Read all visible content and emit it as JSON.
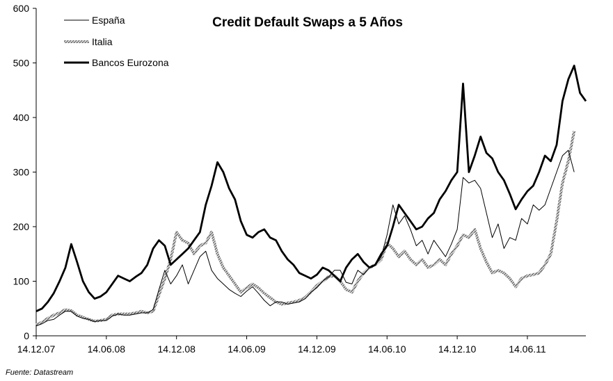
{
  "chart_data": {
    "type": "line",
    "title": "Credit Default Swaps a 5 Años",
    "source": "Fuente: Datastream",
    "ylim": [
      0,
      600
    ],
    "yticks": [
      0,
      100,
      200,
      300,
      400,
      500,
      600
    ],
    "xlim": [
      0,
      46
    ],
    "xticks": [
      {
        "x": 0,
        "label": "14.12.07"
      },
      {
        "x": 6,
        "label": "14.06.08"
      },
      {
        "x": 12,
        "label": "14.12.08"
      },
      {
        "x": 18,
        "label": "14.06.09"
      },
      {
        "x": 24,
        "label": "14.12.09"
      },
      {
        "x": 30,
        "label": "14.06.10"
      },
      {
        "x": 36,
        "label": "14.12.10"
      },
      {
        "x": 42,
        "label": "14.06.11"
      }
    ],
    "legend": {
      "position": "top-left"
    },
    "grid": false,
    "series": [
      {
        "name": "España",
        "color": "#000000",
        "style": "thin",
        "points": [
          [
            0,
            18
          ],
          [
            0.5,
            22
          ],
          [
            1,
            28
          ],
          [
            1.5,
            30
          ],
          [
            2,
            38
          ],
          [
            2.5,
            45
          ],
          [
            3,
            45
          ],
          [
            3.5,
            36
          ],
          [
            4,
            32
          ],
          [
            4.5,
            30
          ],
          [
            5,
            26
          ],
          [
            5.5,
            28
          ],
          [
            6,
            28
          ],
          [
            6.5,
            36
          ],
          [
            7,
            40
          ],
          [
            7.5,
            38
          ],
          [
            8,
            38
          ],
          [
            8.5,
            40
          ],
          [
            9,
            42
          ],
          [
            9.5,
            42
          ],
          [
            10,
            48
          ],
          [
            10.5,
            85
          ],
          [
            11,
            120
          ],
          [
            11.5,
            95
          ],
          [
            12,
            110
          ],
          [
            12.5,
            130
          ],
          [
            13,
            95
          ],
          [
            13.5,
            120
          ],
          [
            14,
            145
          ],
          [
            14.5,
            155
          ],
          [
            15,
            120
          ],
          [
            15.5,
            105
          ],
          [
            16,
            95
          ],
          [
            16.5,
            85
          ],
          [
            17,
            78
          ],
          [
            17.5,
            72
          ],
          [
            18,
            82
          ],
          [
            18.5,
            90
          ],
          [
            19,
            78
          ],
          [
            19.5,
            65
          ],
          [
            20,
            55
          ],
          [
            20.5,
            62
          ],
          [
            21,
            62
          ],
          [
            21.5,
            58
          ],
          [
            22,
            60
          ],
          [
            22.5,
            62
          ],
          [
            23,
            68
          ],
          [
            23.5,
            80
          ],
          [
            24,
            88
          ],
          [
            24.5,
            100
          ],
          [
            25,
            108
          ],
          [
            25.5,
            120
          ],
          [
            26,
            120
          ],
          [
            26.5,
            98
          ],
          [
            27,
            95
          ],
          [
            27.5,
            120
          ],
          [
            28,
            112
          ],
          [
            28.5,
            125
          ],
          [
            29,
            130
          ],
          [
            29.5,
            145
          ],
          [
            30,
            185
          ],
          [
            30.5,
            240
          ],
          [
            31,
            205
          ],
          [
            31.5,
            220
          ],
          [
            32,
            195
          ],
          [
            32.5,
            165
          ],
          [
            33,
            175
          ],
          [
            33.5,
            150
          ],
          [
            34,
            175
          ],
          [
            34.5,
            160
          ],
          [
            35,
            145
          ],
          [
            35.5,
            168
          ],
          [
            36,
            195
          ],
          [
            36.5,
            290
          ],
          [
            37,
            280
          ],
          [
            37.5,
            285
          ],
          [
            38,
            270
          ],
          [
            38.5,
            225
          ],
          [
            39,
            180
          ],
          [
            39.5,
            205
          ],
          [
            40,
            160
          ],
          [
            40.5,
            180
          ],
          [
            41,
            175
          ],
          [
            41.5,
            215
          ],
          [
            42,
            205
          ],
          [
            42.5,
            240
          ],
          [
            43,
            230
          ],
          [
            43.5,
            240
          ],
          [
            44,
            270
          ],
          [
            44.5,
            300
          ],
          [
            45,
            330
          ],
          [
            45.5,
            340
          ],
          [
            46,
            300
          ]
        ]
      },
      {
        "name": "Italia",
        "color": "#8c8c8c",
        "style": "hatched",
        "points": [
          [
            0,
            20
          ],
          [
            0.5,
            25
          ],
          [
            1,
            32
          ],
          [
            1.5,
            38
          ],
          [
            2,
            42
          ],
          [
            2.5,
            48
          ],
          [
            3,
            46
          ],
          [
            3.5,
            38
          ],
          [
            4,
            34
          ],
          [
            4.5,
            30
          ],
          [
            5,
            27
          ],
          [
            5.5,
            28
          ],
          [
            6,
            30
          ],
          [
            6.5,
            38
          ],
          [
            7,
            40
          ],
          [
            7.5,
            40
          ],
          [
            8,
            40
          ],
          [
            8.5,
            42
          ],
          [
            9,
            45
          ],
          [
            9.5,
            42
          ],
          [
            10,
            45
          ],
          [
            10.5,
            75
          ],
          [
            11,
            105
          ],
          [
            11.5,
            140
          ],
          [
            12,
            190
          ],
          [
            12.5,
            175
          ],
          [
            13,
            170
          ],
          [
            13.5,
            150
          ],
          [
            14,
            165
          ],
          [
            14.5,
            170
          ],
          [
            15,
            190
          ],
          [
            15.5,
            150
          ],
          [
            16,
            125
          ],
          [
            16.5,
            110
          ],
          [
            17,
            95
          ],
          [
            17.5,
            80
          ],
          [
            18,
            88
          ],
          [
            18.5,
            95
          ],
          [
            19,
            88
          ],
          [
            19.5,
            78
          ],
          [
            20,
            70
          ],
          [
            20.5,
            62
          ],
          [
            21,
            58
          ],
          [
            21.5,
            60
          ],
          [
            22,
            62
          ],
          [
            22.5,
            65
          ],
          [
            23,
            70
          ],
          [
            23.5,
            80
          ],
          [
            24,
            92
          ],
          [
            24.5,
            100
          ],
          [
            25,
            108
          ],
          [
            25.5,
            110
          ],
          [
            26,
            100
          ],
          [
            26.5,
            85
          ],
          [
            27,
            80
          ],
          [
            27.5,
            100
          ],
          [
            28,
            115
          ],
          [
            28.5,
            125
          ],
          [
            29,
            130
          ],
          [
            29.5,
            140
          ],
          [
            30,
            170
          ],
          [
            30.5,
            160
          ],
          [
            31,
            145
          ],
          [
            31.5,
            155
          ],
          [
            32,
            140
          ],
          [
            32.5,
            130
          ],
          [
            33,
            140
          ],
          [
            33.5,
            125
          ],
          [
            34,
            130
          ],
          [
            34.5,
            140
          ],
          [
            35,
            130
          ],
          [
            35.5,
            150
          ],
          [
            36,
            165
          ],
          [
            36.5,
            185
          ],
          [
            37,
            180
          ],
          [
            37.5,
            195
          ],
          [
            38,
            160
          ],
          [
            38.5,
            135
          ],
          [
            39,
            115
          ],
          [
            39.5,
            120
          ],
          [
            40,
            115
          ],
          [
            40.5,
            105
          ],
          [
            41,
            90
          ],
          [
            41.5,
            105
          ],
          [
            42,
            110
          ],
          [
            42.5,
            112
          ],
          [
            43,
            115
          ],
          [
            43.5,
            130
          ],
          [
            44,
            150
          ],
          [
            44.5,
            210
          ],
          [
            45,
            280
          ],
          [
            45.5,
            320
          ],
          [
            46,
            375
          ]
        ]
      },
      {
        "name": "Bancos Eurozona",
        "color": "#000000",
        "style": "thick",
        "points": [
          [
            0,
            45
          ],
          [
            0.5,
            50
          ],
          [
            1,
            62
          ],
          [
            1.5,
            78
          ],
          [
            2,
            100
          ],
          [
            2.5,
            125
          ],
          [
            3,
            168
          ],
          [
            3.5,
            135
          ],
          [
            4,
            100
          ],
          [
            4.5,
            80
          ],
          [
            5,
            68
          ],
          [
            5.5,
            72
          ],
          [
            6,
            80
          ],
          [
            6.5,
            95
          ],
          [
            7,
            110
          ],
          [
            7.5,
            105
          ],
          [
            8,
            100
          ],
          [
            8.5,
            108
          ],
          [
            9,
            115
          ],
          [
            9.5,
            130
          ],
          [
            10,
            160
          ],
          [
            10.5,
            175
          ],
          [
            11,
            165
          ],
          [
            11.5,
            130
          ],
          [
            12,
            140
          ],
          [
            12.5,
            150
          ],
          [
            13,
            160
          ],
          [
            13.5,
            175
          ],
          [
            14,
            190
          ],
          [
            14.5,
            240
          ],
          [
            15,
            275
          ],
          [
            15.5,
            318
          ],
          [
            16,
            300
          ],
          [
            16.5,
            270
          ],
          [
            17,
            250
          ],
          [
            17.5,
            210
          ],
          [
            18,
            185
          ],
          [
            18.5,
            180
          ],
          [
            19,
            190
          ],
          [
            19.5,
            195
          ],
          [
            20,
            180
          ],
          [
            20.5,
            175
          ],
          [
            21,
            155
          ],
          [
            21.5,
            140
          ],
          [
            22,
            130
          ],
          [
            22.5,
            115
          ],
          [
            23,
            110
          ],
          [
            23.5,
            105
          ],
          [
            24,
            112
          ],
          [
            24.5,
            125
          ],
          [
            25,
            120
          ],
          [
            25.5,
            110
          ],
          [
            26,
            100
          ],
          [
            26.5,
            125
          ],
          [
            27,
            140
          ],
          [
            27.5,
            150
          ],
          [
            28,
            135
          ],
          [
            28.5,
            125
          ],
          [
            29,
            130
          ],
          [
            29.5,
            150
          ],
          [
            30,
            165
          ],
          [
            30.5,
            200
          ],
          [
            31,
            240
          ],
          [
            31.5,
            225
          ],
          [
            32,
            210
          ],
          [
            32.5,
            195
          ],
          [
            33,
            200
          ],
          [
            33.5,
            215
          ],
          [
            34,
            225
          ],
          [
            34.5,
            250
          ],
          [
            35,
            265
          ],
          [
            35.5,
            285
          ],
          [
            36,
            300
          ],
          [
            36.5,
            462
          ],
          [
            37,
            300
          ],
          [
            37.5,
            330
          ],
          [
            38,
            365
          ],
          [
            38.5,
            335
          ],
          [
            39,
            325
          ],
          [
            39.5,
            300
          ],
          [
            40,
            285
          ],
          [
            40.5,
            260
          ],
          [
            41,
            232
          ],
          [
            41.5,
            250
          ],
          [
            42,
            265
          ],
          [
            42.5,
            275
          ],
          [
            43,
            300
          ],
          [
            43.5,
            330
          ],
          [
            44,
            320
          ],
          [
            44.5,
            350
          ],
          [
            45,
            430
          ],
          [
            45.5,
            470
          ],
          [
            46,
            495
          ],
          [
            46.5,
            445
          ],
          [
            47,
            430
          ]
        ]
      }
    ]
  }
}
